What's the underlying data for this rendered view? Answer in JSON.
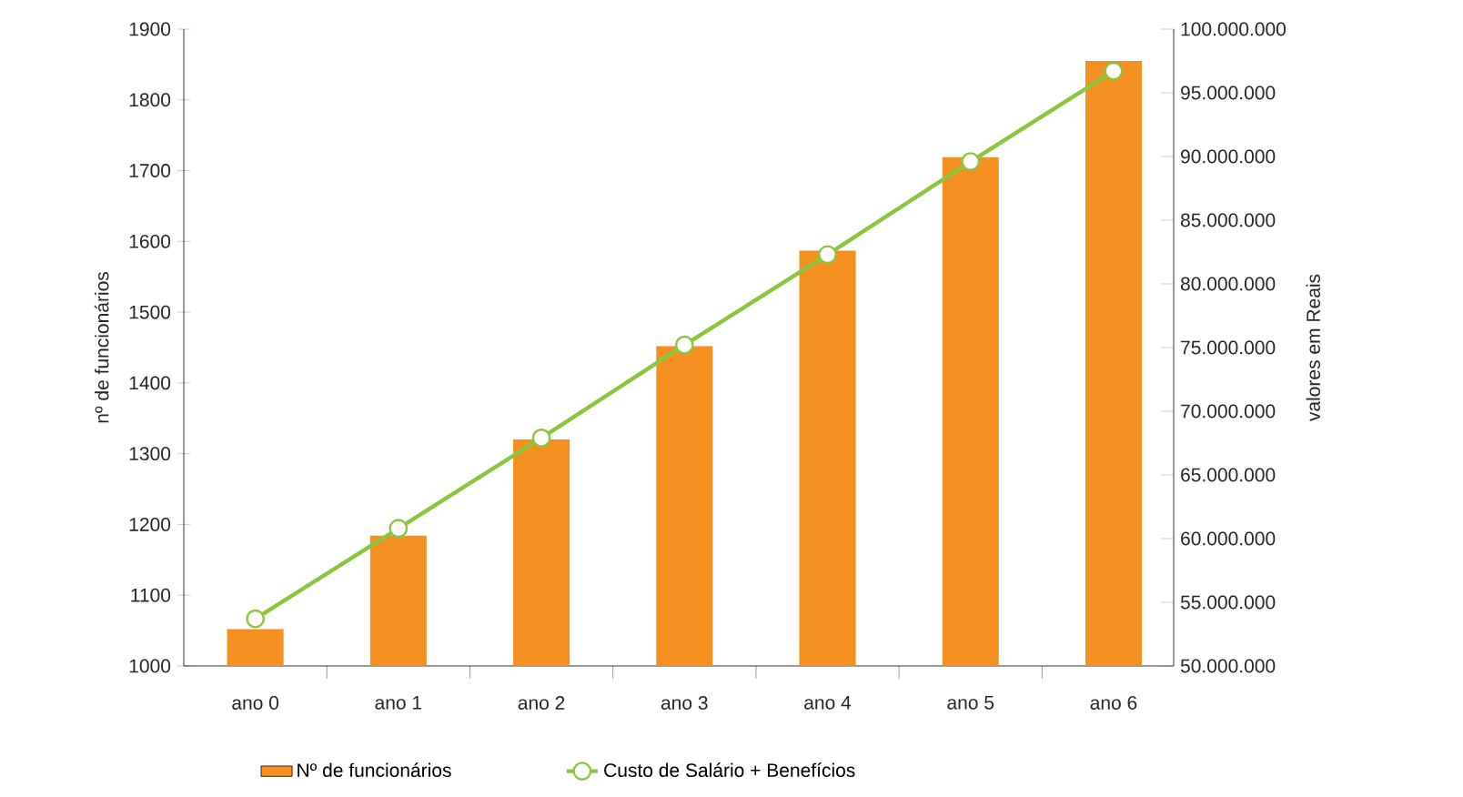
{
  "chart_data": {
    "type": "bar",
    "ylabel": "nº de funcionários",
    "y2label": "valores em Reais",
    "categories": [
      "ano 0",
      "ano 1",
      "ano 2",
      "ano 3",
      "ano 4",
      "ano 5",
      "ano 6"
    ],
    "series": [
      {
        "name": "Nº de funcionários",
        "color": "#f39020",
        "values": [
          1052,
          1184,
          1320,
          1452,
          1587,
          1719,
          1855
        ]
      },
      {
        "name": "Custo de Salário + Benefícios",
        "type": "line",
        "axis": "y2",
        "color": "#8cc63f",
        "marker": "circle",
        "values": [
          53700000,
          60800000,
          67900000,
          75200000,
          82300000,
          89600000,
          96700000
        ]
      }
    ],
    "ylim": [
      1000,
      1900
    ],
    "yticks": [
      1000,
      1100,
      1200,
      1300,
      1400,
      1500,
      1600,
      1700,
      1800,
      1900
    ],
    "y2lim": [
      50000000,
      100000000
    ],
    "y2ticks": [
      {
        "value": 50000000,
        "label": "50.000.000"
      },
      {
        "value": 55000000,
        "label": "55.000.000"
      },
      {
        "value": 60000000,
        "label": "60.000.000"
      },
      {
        "value": 65000000,
        "label": "65.000.000"
      },
      {
        "value": 70000000,
        "label": "70.000.000"
      },
      {
        "value": 75000000,
        "label": "75.000.000"
      },
      {
        "value": 80000000,
        "label": "80.000.000"
      },
      {
        "value": 85000000,
        "label": "85.000.000"
      },
      {
        "value": 90000000,
        "label": "90.000.000"
      },
      {
        "value": 95000000,
        "label": "95.000.000"
      },
      {
        "value": 100000000,
        "label": "100.000.000"
      }
    ],
    "grid": false,
    "legend": "bottom"
  }
}
